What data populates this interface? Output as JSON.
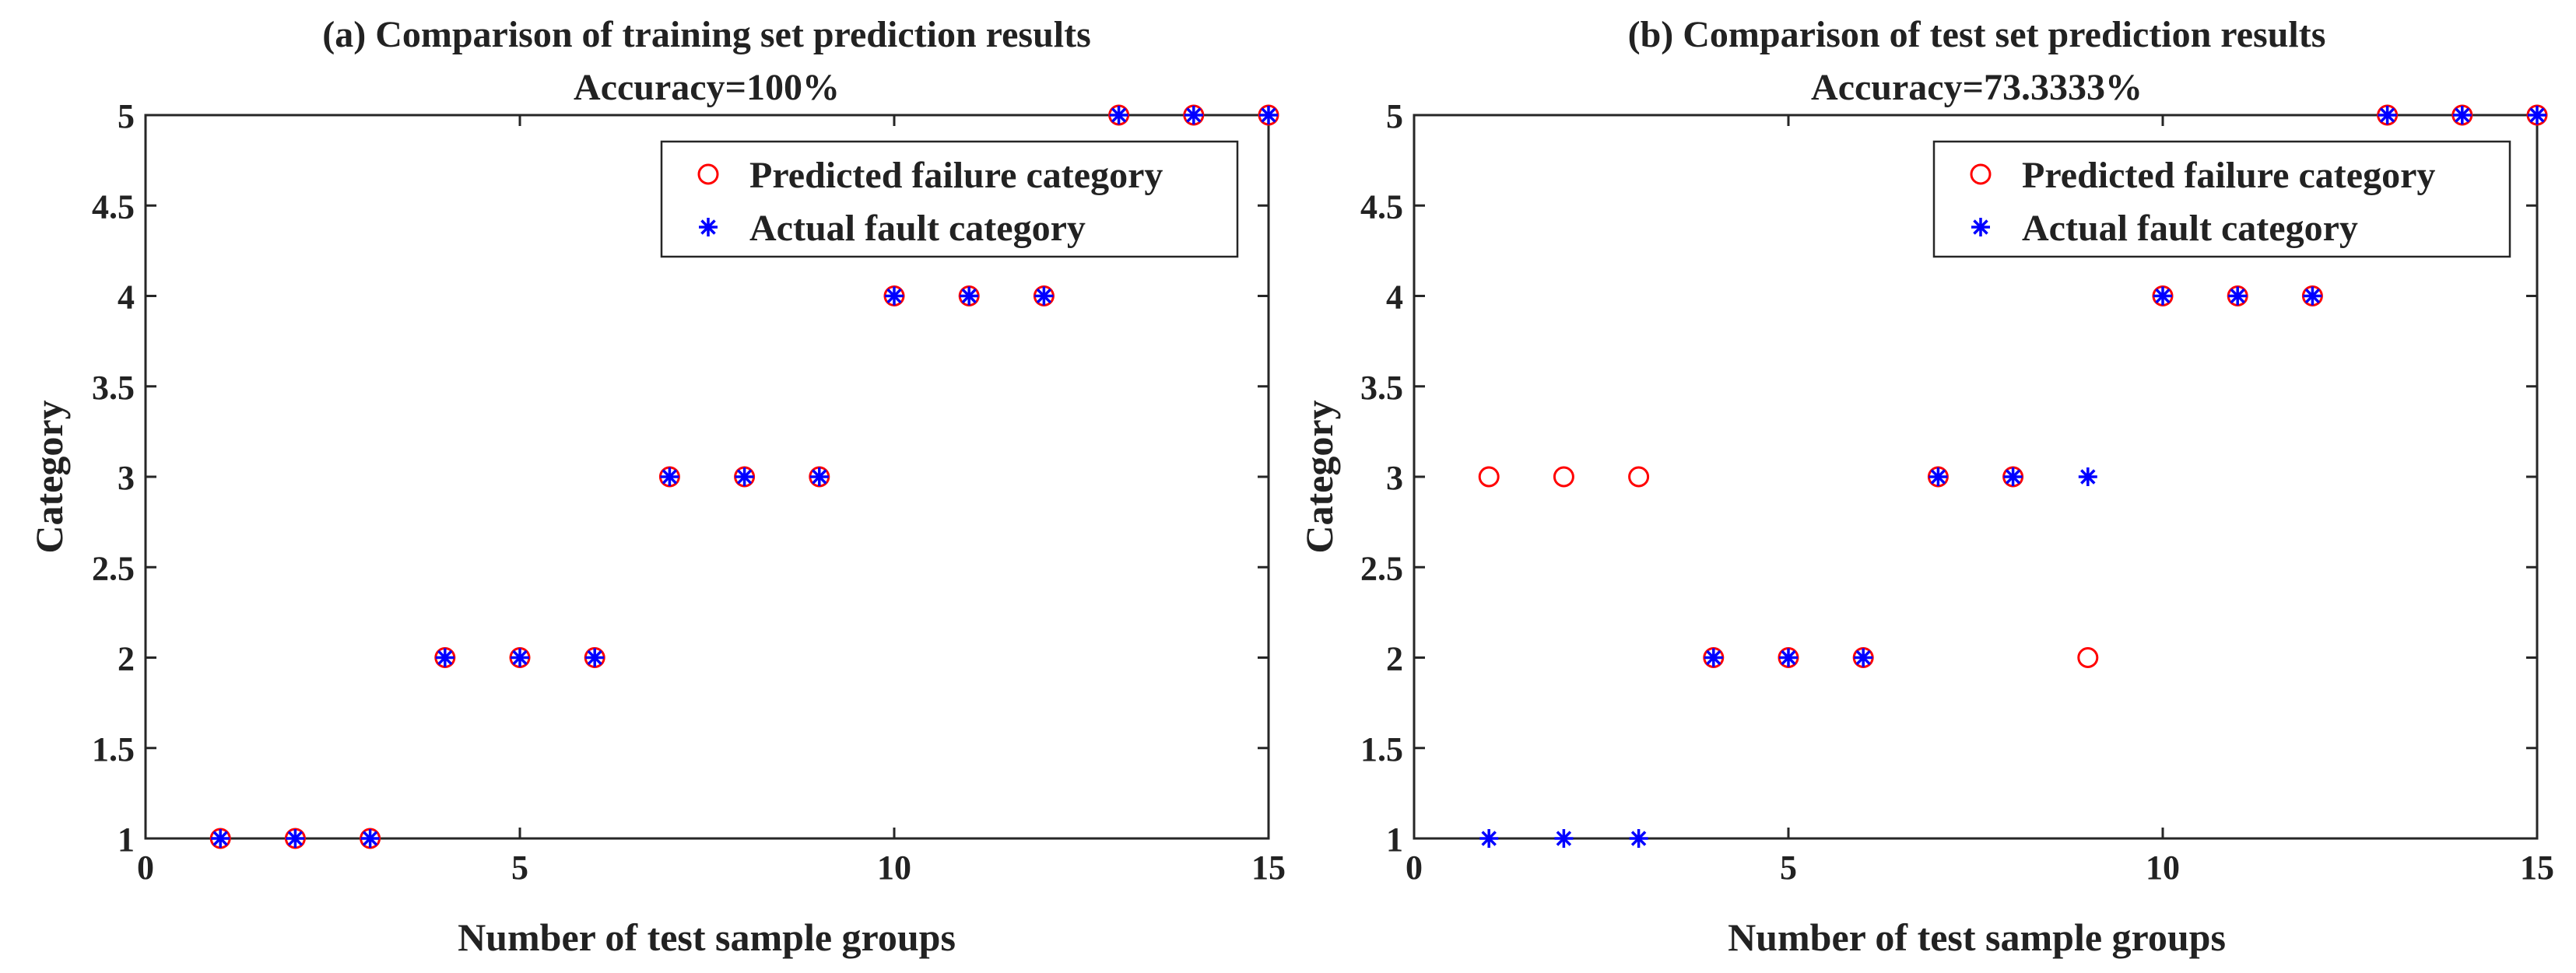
{
  "chart_data": [
    {
      "type": "scatter",
      "title": "(a) Comparison of training set prediction results",
      "subtitle": "Accuracy=100%",
      "xlabel": "Number of test sample groups",
      "ylabel": "Category",
      "xlim": [
        0,
        15
      ],
      "ylim": [
        1,
        5
      ],
      "xticks": [
        0,
        5,
        10,
        15
      ],
      "xtick_labels": [
        "0",
        "5",
        "10",
        "15"
      ],
      "yticks": [
        1,
        1.5,
        2,
        2.5,
        3,
        3.5,
        4,
        4.5,
        5
      ],
      "ytick_labels": [
        "1",
        "1.5",
        "2",
        "2.5",
        "3",
        "3.5",
        "4",
        "4.5",
        "5"
      ],
      "grid": false,
      "legend_position": "top-right",
      "series": [
        {
          "name": "Predicted failure category",
          "marker": "circle",
          "color": "#ff0000",
          "x": [
            1,
            2,
            3,
            4,
            5,
            6,
            7,
            8,
            9,
            10,
            11,
            12,
            13,
            14,
            15
          ],
          "y": [
            1,
            1,
            1,
            2,
            2,
            2,
            3,
            3,
            3,
            4,
            4,
            4,
            5,
            5,
            5
          ]
        },
        {
          "name": "Actual fault category",
          "marker": "asterisk",
          "color": "#0000ff",
          "x": [
            1,
            2,
            3,
            4,
            5,
            6,
            7,
            8,
            9,
            10,
            11,
            12,
            13,
            14,
            15
          ],
          "y": [
            1,
            1,
            1,
            2,
            2,
            2,
            3,
            3,
            3,
            4,
            4,
            4,
            5,
            5,
            5
          ]
        }
      ]
    },
    {
      "type": "scatter",
      "title": "(b) Comparison of test set prediction results",
      "subtitle": "Accuracy=73.3333%",
      "xlabel": "Number of test sample groups",
      "ylabel": "Category",
      "xlim": [
        0,
        15
      ],
      "ylim": [
        1,
        5
      ],
      "xticks": [
        0,
        5,
        10,
        15
      ],
      "xtick_labels": [
        "0",
        "5",
        "10",
        "15"
      ],
      "yticks": [
        1,
        1.5,
        2,
        2.5,
        3,
        3.5,
        4,
        4.5,
        5
      ],
      "ytick_labels": [
        "1",
        "1.5",
        "2",
        "2.5",
        "3",
        "3.5",
        "4",
        "4.5",
        "5"
      ],
      "grid": false,
      "legend_position": "top-right",
      "series": [
        {
          "name": "Predicted failure category",
          "marker": "circle",
          "color": "#ff0000",
          "x": [
            1,
            2,
            3,
            4,
            5,
            6,
            7,
            8,
            9,
            10,
            11,
            12,
            13,
            14,
            15
          ],
          "y": [
            3,
            3,
            3,
            2,
            2,
            2,
            3,
            3,
            2,
            4,
            4,
            4,
            5,
            5,
            5
          ]
        },
        {
          "name": "Actual fault category",
          "marker": "asterisk",
          "color": "#0000ff",
          "x": [
            1,
            2,
            3,
            4,
            5,
            6,
            7,
            8,
            9,
            10,
            11,
            12,
            13,
            14,
            15
          ],
          "y": [
            1,
            1,
            1,
            2,
            2,
            2,
            3,
            3,
            3,
            4,
            4,
            4,
            5,
            5,
            5
          ]
        }
      ]
    }
  ]
}
